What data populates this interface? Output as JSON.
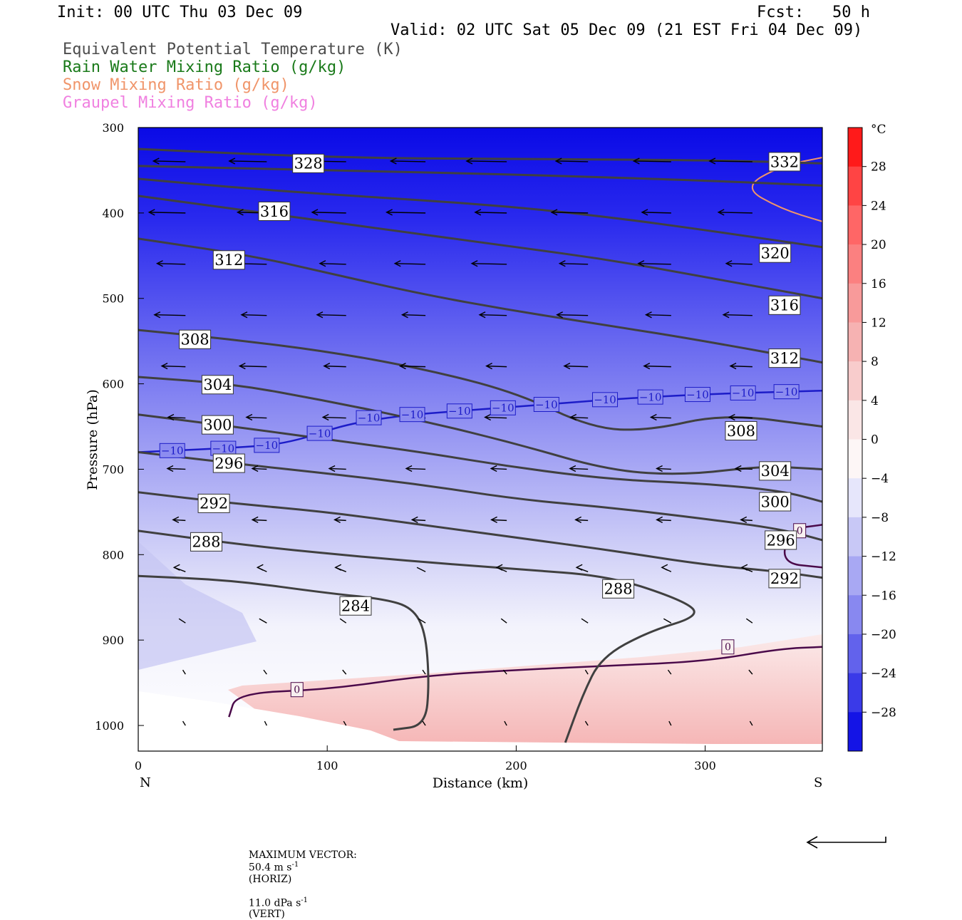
{
  "header": {
    "init": "Init: 00 UTC Thu 03 Dec 09",
    "fcst": "Fcst:   50 h",
    "valid": "Valid: 02 UTC Sat 05 Dec 09 (21 EST Fri 04 Dec 09)"
  },
  "legend": [
    {
      "label": "Equivalent Potential Temperature (K)",
      "color": "#4d4d4d"
    },
    {
      "label": "Rain Water Mixing Ratio (g/kg)",
      "color": "#1a7a1a"
    },
    {
      "label": "Snow Mixing Ratio (g/kg)",
      "color": "#f0956a"
    },
    {
      "label": "Graupel Mixing Ratio (g/kg)",
      "color": "#f080e0"
    }
  ],
  "footer": {
    "max_vector_label": "MAXIMUM VECTOR:",
    "horiz_value": "50.4 m s",
    "horiz_exp": "-1",
    "horiz_tag": "(HORIZ)",
    "vert_value": "11.0 dPa s",
    "vert_exp": "-1",
    "vert_tag": "(VERT)"
  },
  "chart_data": {
    "type": "cross-section",
    "xlabel": "Distance (km)",
    "ylabel": "Pressure (hPa)",
    "x_ticks": [
      0,
      100,
      200,
      300
    ],
    "xlim": [
      0,
      362
    ],
    "y_ticks": [
      300,
      400,
      500,
      600,
      700,
      800,
      900,
      1000
    ],
    "ylim": [
      1030,
      300
    ],
    "left_end_label": "N",
    "right_end_label": "S",
    "colorbar": {
      "unit": "°C",
      "ticks": [
        "28",
        "24",
        "20",
        "16",
        "12",
        "8",
        "4",
        "0",
        "−4",
        "−8",
        "−12",
        "−16",
        "−20",
        "−24",
        "−28"
      ]
    },
    "theta_e_contours": [
      {
        "value": "284",
        "points": [
          [
            0,
            825
          ],
          [
            50,
            830
          ],
          [
            100,
            845
          ],
          [
            130,
            852
          ],
          [
            145,
            862
          ],
          [
            152,
            890
          ],
          [
            154,
            950
          ],
          [
            152,
            1000
          ],
          [
            135,
            1005
          ]
        ]
      },
      {
        "value": "288",
        "points": [
          [
            0,
            772
          ],
          [
            60,
            790
          ],
          [
            130,
            805
          ],
          [
            200,
            817
          ],
          [
            250,
            825
          ],
          [
            290,
            855
          ],
          [
            297,
            872
          ],
          [
            270,
            890
          ],
          [
            245,
            920
          ],
          [
            235,
            965
          ],
          [
            226,
            1020
          ]
        ]
      },
      {
        "value": "292",
        "points": [
          [
            0,
            727
          ],
          [
            50,
            740
          ],
          [
            100,
            750
          ],
          [
            150,
            765
          ],
          [
            200,
            780
          ],
          [
            250,
            795
          ],
          [
            300,
            812
          ],
          [
            340,
            820
          ],
          [
            362,
            827
          ]
        ]
      },
      {
        "value": "296",
        "points": [
          [
            0,
            680
          ],
          [
            50,
            693
          ],
          [
            100,
            705
          ],
          [
            150,
            718
          ],
          [
            200,
            735
          ],
          [
            250,
            745
          ],
          [
            300,
            758
          ],
          [
            340,
            770
          ],
          [
            362,
            783
          ]
        ]
      },
      {
        "value": "300",
        "points": [
          [
            0,
            636
          ],
          [
            50,
            650
          ],
          [
            100,
            665
          ],
          [
            150,
            680
          ],
          [
            200,
            698
          ],
          [
            250,
            712
          ],
          [
            300,
            717
          ],
          [
            340,
            725
          ],
          [
            362,
            738
          ]
        ]
      },
      {
        "value": "304",
        "points": [
          [
            0,
            592
          ],
          [
            50,
            600
          ],
          [
            100,
            620
          ],
          [
            150,
            643
          ],
          [
            200,
            670
          ],
          [
            250,
            702
          ],
          [
            290,
            707
          ],
          [
            330,
            696
          ],
          [
            362,
            700
          ]
        ]
      },
      {
        "value": "308",
        "points": [
          [
            0,
            537
          ],
          [
            50,
            548
          ],
          [
            100,
            562
          ],
          [
            150,
            582
          ],
          [
            200,
            610
          ],
          [
            240,
            652
          ],
          [
            270,
            655
          ],
          [
            310,
            635
          ],
          [
            362,
            650
          ]
        ]
      },
      {
        "value": "312",
        "points": [
          [
            0,
            430
          ],
          [
            60,
            450
          ],
          [
            100,
            470
          ],
          [
            150,
            495
          ],
          [
            200,
            515
          ],
          [
            250,
            532
          ],
          [
            300,
            550
          ],
          [
            362,
            575
          ]
        ]
      },
      {
        "value": "316",
        "points": [
          [
            0,
            380
          ],
          [
            50,
            395
          ],
          [
            100,
            410
          ],
          [
            150,
            425
          ],
          [
            200,
            440
          ],
          [
            250,
            455
          ],
          [
            300,
            475
          ],
          [
            362,
            500
          ]
        ]
      },
      {
        "value": "320",
        "points": [
          [
            0,
            360
          ],
          [
            50,
            370
          ],
          [
            100,
            378
          ],
          [
            150,
            385
          ],
          [
            200,
            393
          ],
          [
            250,
            405
          ],
          [
            300,
            420
          ],
          [
            362,
            440
          ]
        ]
      },
      {
        "value": "328",
        "points": [
          [
            0,
            345
          ],
          [
            100,
            350
          ],
          [
            200,
            355
          ],
          [
            300,
            362
          ],
          [
            362,
            368
          ]
        ]
      },
      {
        "value": "332",
        "points": [
          [
            0,
            325
          ],
          [
            100,
            335
          ],
          [
            200,
            337
          ],
          [
            300,
            338
          ],
          [
            362,
            342
          ]
        ]
      }
    ],
    "temperature_contours": [
      {
        "value": "−10",
        "color": "#1c1cc8",
        "points": [
          [
            0,
            680
          ],
          [
            50,
            675
          ],
          [
            80,
            670
          ],
          [
            120,
            640
          ],
          [
            200,
            627
          ],
          [
            250,
            618
          ],
          [
            300,
            612
          ],
          [
            362,
            608
          ]
        ]
      },
      {
        "value": "0",
        "color": "#4a0a4a",
        "points": [
          [
            48,
            990
          ],
          [
            52,
            962
          ],
          [
            100,
            958
          ],
          [
            150,
            942
          ],
          [
            200,
            935
          ],
          [
            250,
            930
          ],
          [
            300,
            925
          ],
          [
            340,
            910
          ],
          [
            362,
            908
          ]
        ]
      },
      {
        "value": "0",
        "color": "#4a0a4a",
        "points": [
          [
            362,
            765
          ],
          [
            345,
            770
          ],
          [
            340,
            810
          ],
          [
            362,
            815
          ]
        ]
      }
    ],
    "snow_contour": {
      "points": [
        [
          362,
          335
        ],
        [
          340,
          345
        ],
        [
          320,
          370
        ],
        [
          340,
          395
        ],
        [
          362,
          410
        ]
      ]
    },
    "wind_vectors_note": "horizontal wind mostly northerly (leftward) aloft, weakening toward the surface"
  }
}
